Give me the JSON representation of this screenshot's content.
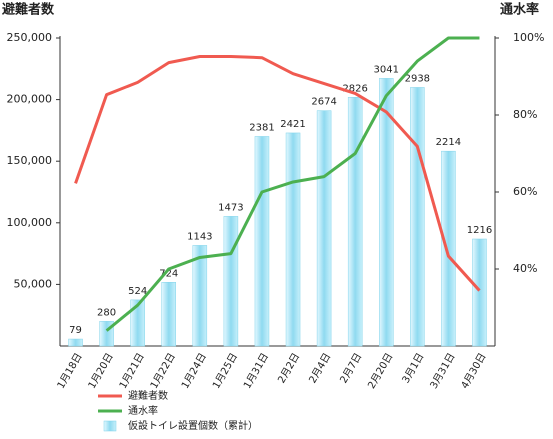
{
  "chart_data": {
    "type": "bar-line",
    "ylabel": "避難者数",
    "y2label": "通水率",
    "categories": [
      "1月18日",
      "1月20日",
      "1月21日",
      "1月22日",
      "1月24日",
      "1月25日",
      "1月31日",
      "2月2日",
      "2月4日",
      "2月7日",
      "2月20日",
      "3月1日",
      "3月31日",
      "4月30日"
    ],
    "series": [
      {
        "name": "避難者数",
        "type": "line",
        "color": "#f05a50",
        "axis": "y",
        "values": [
          132000,
          204000,
          214000,
          230000,
          235000,
          235000,
          234000,
          221000,
          213000,
          205000,
          190000,
          162000,
          73000,
          45000
        ]
      },
      {
        "name": "通水率",
        "type": "line",
        "color": "#4cb050",
        "axis": "y2",
        "values": [
          null,
          24,
          30.6,
          40,
          43,
          44,
          60,
          62.6,
          64,
          70,
          85,
          94,
          100,
          100
        ]
      },
      {
        "name": "仮設トイレ設置個数（累計）",
        "type": "bar",
        "color": "#7fd3ea",
        "axis": "y3",
        "values": [
          79,
          280,
          524,
          724,
          1143,
          1473,
          2381,
          2421,
          2674,
          2826,
          3041,
          2938,
          2214,
          1216
        ]
      }
    ],
    "ylim": [
      0,
      250000
    ],
    "yticks": [
      {
        "value": 50000,
        "label": "50,000"
      },
      {
        "value": 100000,
        "label": "100,000"
      },
      {
        "value": 150000,
        "label": "150,000"
      },
      {
        "value": 200000,
        "label": "200,000"
      },
      {
        "value": 250000,
        "label": "250,000"
      }
    ],
    "y2lim": [
      20,
      100
    ],
    "y2ticks": [
      {
        "value": 40,
        "label": "40%"
      },
      {
        "value": 60,
        "label": "60%"
      },
      {
        "value": 80,
        "label": "80%"
      },
      {
        "value": 100,
        "label": "100%"
      }
    ],
    "y3lim": [
      0,
      3500
    ],
    "grid": false,
    "legend": "bottom-left"
  }
}
